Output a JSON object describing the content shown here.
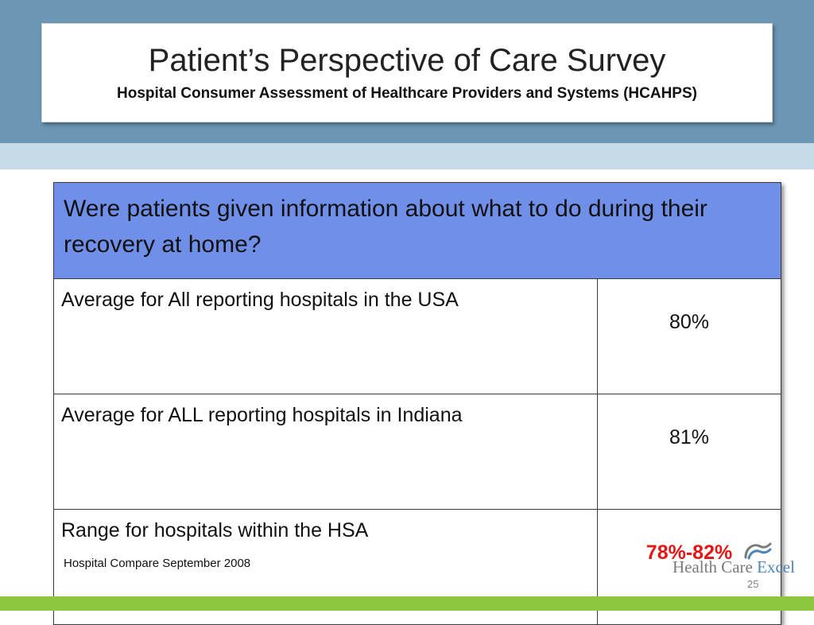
{
  "slide": {
    "title": "Patient’s Perspective of Care Survey",
    "subtitle": "Hospital Consumer Assessment of Healthcare Providers and Systems (HCAHPS)",
    "question": "Were patients given information about what to do during their recovery at home?",
    "rows": [
      {
        "label": "Average for All reporting hospitals in the USA",
        "value": "80%"
      },
      {
        "label": "Average for ALL reporting hospitals in Indiana",
        "value": "81%"
      },
      {
        "label": "Range for hospitals within the HSA",
        "value": "78%-82%"
      }
    ],
    "source": "Hospital Compare September 2008",
    "logo": {
      "word1": "Health Care",
      "word2": "Excel"
    },
    "page_number": "25"
  },
  "colors": {
    "header_band": "#6b97b5",
    "light_band": "#c5dbe7",
    "question_fill": "#6f8fe8",
    "highlight_value": "#e31515",
    "footer_band": "#8dc63f"
  },
  "icons": {
    "logo_mark": "wave-swoosh-icon"
  }
}
